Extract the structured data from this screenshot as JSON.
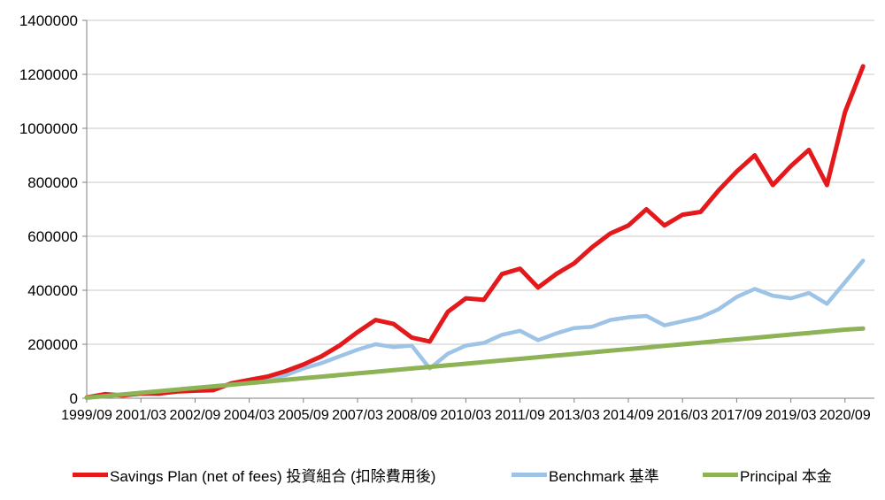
{
  "chart_data": {
    "type": "line",
    "title": "",
    "xlabel": "",
    "ylabel": "",
    "ylim": [
      0,
      1400000
    ],
    "yticks": [
      0,
      200000,
      400000,
      600000,
      800000,
      1000000,
      1200000,
      1400000
    ],
    "ytick_labels": [
      "0",
      "200000",
      "400000",
      "600000",
      "800000",
      "1000000",
      "1200000",
      "1400000"
    ],
    "xtick_labels": [
      "1999/09",
      "2001/03",
      "2002/09",
      "2004/03",
      "2005/09",
      "2007/03",
      "2008/09",
      "2010/03",
      "2011/09",
      "2013/03",
      "2014/09",
      "2016/03",
      "2017/09",
      "2019/03",
      "2020/09"
    ],
    "grid": "horizontal",
    "legend_position": "bottom",
    "x": [
      "1999/09",
      "2000/03",
      "2000/09",
      "2001/03",
      "2001/09",
      "2002/03",
      "2002/09",
      "2003/03",
      "2003/09",
      "2004/03",
      "2004/09",
      "2005/03",
      "2005/09",
      "2006/03",
      "2006/09",
      "2007/03",
      "2007/09",
      "2008/03",
      "2008/09",
      "2009/03",
      "2009/09",
      "2010/03",
      "2010/09",
      "2011/03",
      "2011/09",
      "2012/03",
      "2012/09",
      "2013/03",
      "2013/09",
      "2014/03",
      "2014/09",
      "2015/03",
      "2015/09",
      "2016/03",
      "2016/09",
      "2017/03",
      "2017/09",
      "2018/03",
      "2018/09",
      "2019/03",
      "2019/09",
      "2020/03",
      "2020/09",
      "2021/01"
    ],
    "series": [
      {
        "name": "Savings Plan  (net of fees)  投資組合 (扣除費用後)",
        "color": "#e3191c",
        "values": [
          3000,
          15000,
          10000,
          18000,
          17000,
          25000,
          28000,
          30000,
          55000,
          68000,
          80000,
          100000,
          125000,
          155000,
          195000,
          245000,
          290000,
          275000,
          225000,
          210000,
          320000,
          370000,
          365000,
          460000,
          480000,
          410000,
          460000,
          500000,
          560000,
          610000,
          640000,
          700000,
          640000,
          680000,
          690000,
          770000,
          840000,
          900000,
          790000,
          860000,
          920000,
          790000,
          1060000,
          1230000
        ]
      },
      {
        "name": "Benchmark 基準",
        "color": "#9dc3e6",
        "values": [
          2000,
          8000,
          12000,
          15000,
          20000,
          28000,
          35000,
          40000,
          52000,
          62000,
          72000,
          85000,
          110000,
          130000,
          155000,
          180000,
          200000,
          190000,
          195000,
          110000,
          165000,
          195000,
          205000,
          235000,
          250000,
          215000,
          240000,
          260000,
          265000,
          290000,
          300000,
          305000,
          270000,
          285000,
          300000,
          330000,
          375000,
          405000,
          380000,
          370000,
          390000,
          350000,
          430000,
          510000
        ]
      },
      {
        "name": "Principal 本金",
        "color": "#8db356",
        "values": [
          2000,
          8000,
          14000,
          20000,
          26000,
          32000,
          38000,
          44000,
          50000,
          56000,
          62000,
          68000,
          74000,
          80000,
          86000,
          92000,
          98000,
          104000,
          110000,
          116000,
          122000,
          128000,
          134000,
          140000,
          146000,
          152000,
          158000,
          164000,
          170000,
          176000,
          182000,
          188000,
          194000,
          200000,
          206000,
          212000,
          218000,
          224000,
          230000,
          236000,
          242000,
          248000,
          254000,
          258000
        ]
      }
    ]
  }
}
